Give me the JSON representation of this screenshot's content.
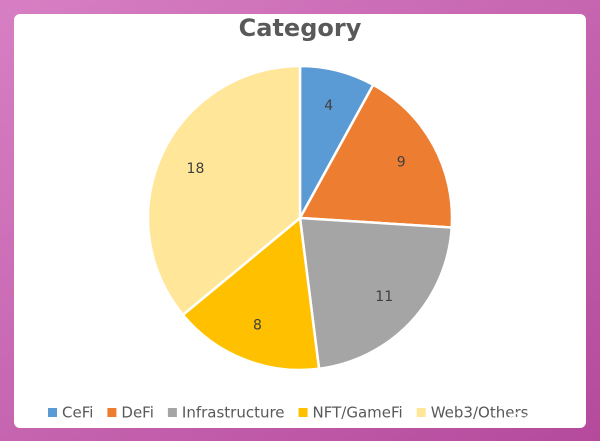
{
  "chart_data": {
    "type": "pie",
    "title": "Category",
    "categories": [
      "CeFi",
      "DeFi",
      "Infrastructure",
      "NFT/GameFi",
      "Web3/Others"
    ],
    "values": [
      4,
      9,
      11,
      8,
      18
    ],
    "colors": [
      "#5b9bd5",
      "#ed7d31",
      "#a5a5a5",
      "#ffc000",
      "#ffe699"
    ],
    "legend": "bottom"
  },
  "watermark": "金色财经"
}
